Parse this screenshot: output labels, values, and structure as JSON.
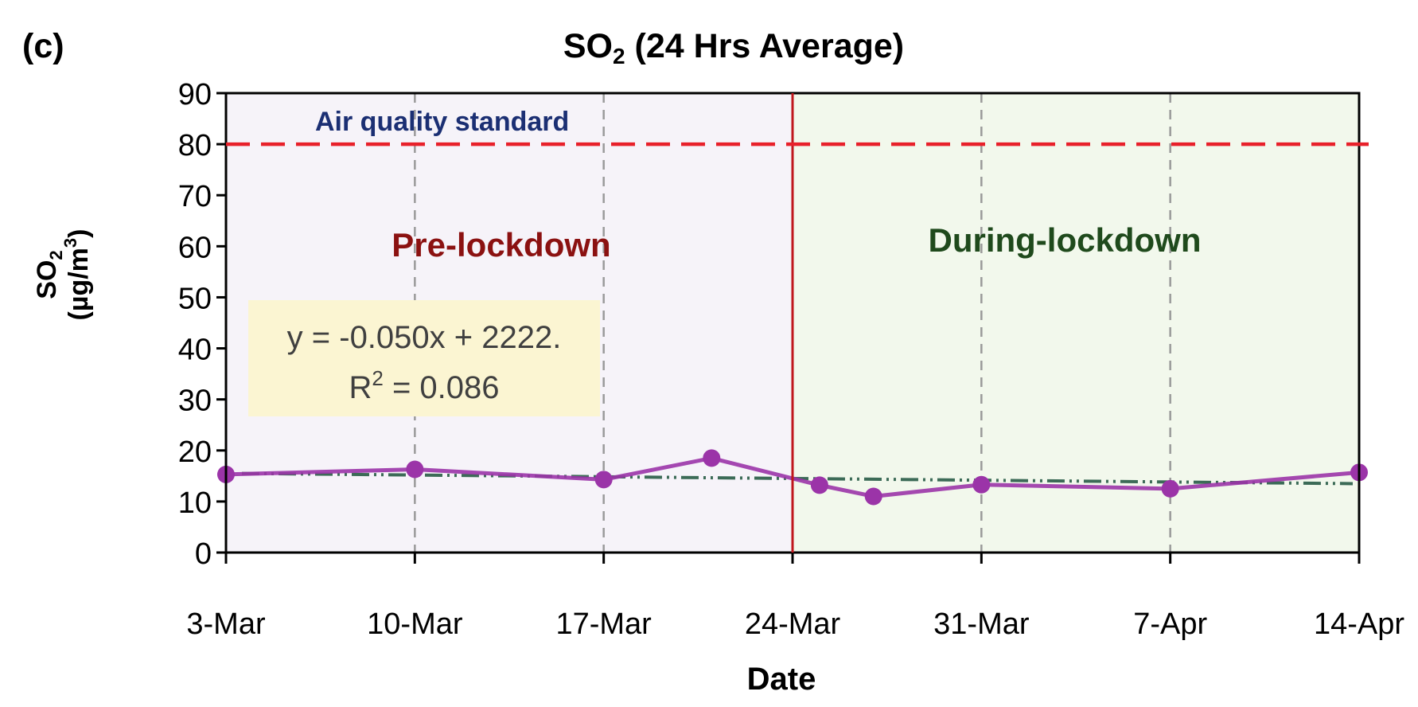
{
  "panel_label": "(c)",
  "title": {
    "main": "SO",
    "sub": "2",
    "rest": " (24 Hrs Average)"
  },
  "ylabel": {
    "line1_main": "SO",
    "line1_sub": "2",
    "line2_pre": "(µg/m",
    "line2_sup": "3",
    "line2_post": ")"
  },
  "standard_label": "Air quality standard",
  "region_labels": {
    "pre": "Pre-lockdown",
    "during": "During-lockdown"
  },
  "trendline_box": {
    "equation": "y = -0.050x + 2222.",
    "r2_pre": "R",
    "r2_sup": "2",
    "r2_post": " = 0.086"
  },
  "colors": {
    "series": "#9b34a8",
    "trend": "#3c6b57",
    "standard": "#e8202a",
    "divider": "#c0171d",
    "pre_bg": "#f6f3f9",
    "during_bg": "#f2f8ec",
    "pre_text": "#8b1111",
    "during_text": "#1f4a1c",
    "standard_text": "#1b2f73",
    "box_bg": "#fbf5d2"
  },
  "chart_data": {
    "type": "line",
    "title": "SO2 (24 Hrs Average)",
    "xlabel": "Date",
    "ylabel": "SO2 (µg/m3)",
    "ylim": [
      0,
      90
    ],
    "yticks": [
      0,
      10,
      20,
      30,
      40,
      50,
      60,
      70,
      80,
      90
    ],
    "xlim": [
      "3-Mar",
      "14-Apr"
    ],
    "xticks": [
      "3-Mar",
      "10-Mar",
      "17-Mar",
      "24-Mar",
      "31-Mar",
      "7-Apr",
      "14-Apr"
    ],
    "grid": "vertical dashed at x ticks",
    "lockdown_start": "24-Mar",
    "standard": 80,
    "series": [
      {
        "x": [
          "3-Mar",
          "10-Mar",
          "17-Mar",
          "21-Mar",
          "25-Mar",
          "27-Mar",
          "31-Mar",
          "7-Apr",
          "14-Apr"
        ],
        "y": [
          15.3,
          16.3,
          14.3,
          18.5,
          13.2,
          11.0,
          13.3,
          12.5,
          15.7
        ]
      }
    ],
    "trendline": {
      "type": "linear",
      "equation": "y = -0.050x + 2222.",
      "r2": 0.086,
      "y_start": 15.5,
      "y_end": 13.5
    }
  }
}
